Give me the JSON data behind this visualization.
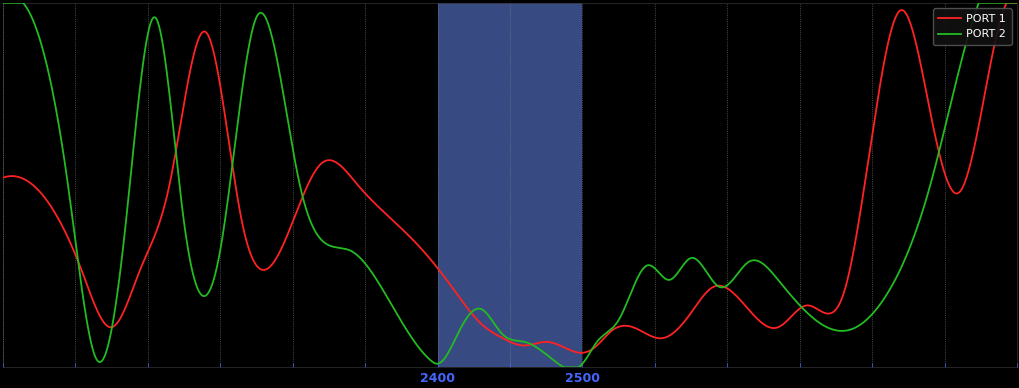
{
  "background_color": "#000000",
  "plot_bg_color": "#000000",
  "band_start": 2400,
  "band_end": 2500,
  "band_color": "#6688ee",
  "band_alpha": 0.55,
  "x_min": 2100,
  "x_max": 2800,
  "y_min": 1.0,
  "y_max": 6.0,
  "tick_label_color": "#4466ff",
  "line1_color": "#ff2222",
  "line2_color": "#22bb22",
  "legend_labels": [
    "PORT 1",
    "PORT 2"
  ],
  "xlabel_2400": "2400",
  "xlabel_2500": "2500",
  "port1_x": [
    2100,
    2130,
    2155,
    2175,
    2195,
    2215,
    2240,
    2265,
    2295,
    2320,
    2345,
    2370,
    2390,
    2410,
    2430,
    2445,
    2460,
    2475,
    2490,
    2500,
    2510,
    2520,
    2535,
    2555,
    2575,
    2590,
    2610,
    2635,
    2655,
    2680,
    2700,
    2720,
    2740,
    2760,
    2780,
    2800
  ],
  "port1_y": [
    3.6,
    3.3,
    2.3,
    1.55,
    2.35,
    3.5,
    5.6,
    3.0,
    2.75,
    3.8,
    3.5,
    3.0,
    2.6,
    2.1,
    1.6,
    1.4,
    1.3,
    1.35,
    1.25,
    1.2,
    1.3,
    1.5,
    1.55,
    1.4,
    1.75,
    2.1,
    1.9,
    1.55,
    1.85,
    2.0,
    4.2,
    5.9,
    4.5,
    3.4,
    5.0,
    6.0
  ],
  "port2_x": [
    2100,
    2120,
    2145,
    2165,
    2185,
    2205,
    2225,
    2250,
    2275,
    2305,
    2340,
    2370,
    2395,
    2400,
    2415,
    2430,
    2445,
    2460,
    2480,
    2500,
    2510,
    2525,
    2545,
    2560,
    2575,
    2595,
    2615,
    2635,
    2655,
    2680,
    2710,
    2740,
    2770,
    2800
  ],
  "port2_y": [
    6.0,
    5.8,
    3.5,
    1.1,
    3.0,
    5.8,
    3.0,
    2.6,
    5.8,
    3.5,
    2.6,
    1.8,
    1.1,
    1.05,
    1.5,
    1.8,
    1.45,
    1.35,
    1.1,
    1.05,
    1.35,
    1.65,
    2.4,
    2.2,
    2.5,
    2.1,
    2.45,
    2.2,
    1.75,
    1.5,
    2.0,
    3.5,
    5.8,
    6.0
  ]
}
